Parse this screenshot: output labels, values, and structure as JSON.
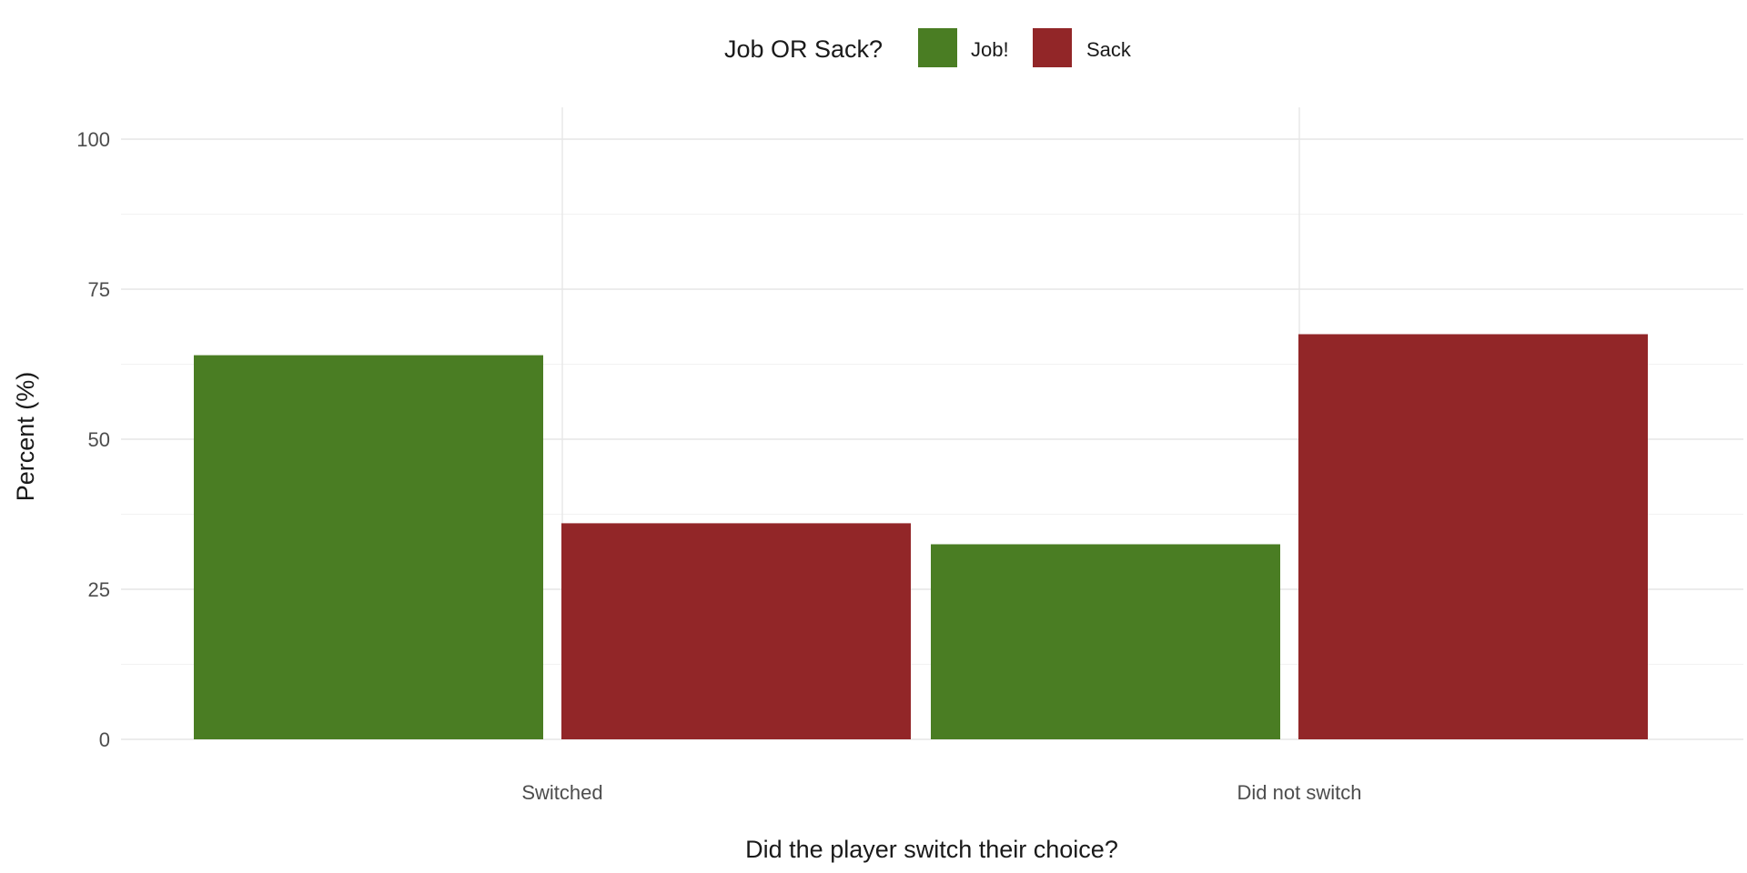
{
  "chart_data": {
    "type": "bar",
    "categories": [
      "Switched",
      "Did not switch"
    ],
    "series": [
      {
        "name": "Job!",
        "values": [
          64,
          32.5
        ],
        "color": "#4a7d23"
      },
      {
        "name": "Sack",
        "values": [
          36,
          67.5
        ],
        "color": "#922628"
      }
    ],
    "legend_title": "Job OR Sack?",
    "legend_position": "top",
    "xlabel": "Did the player switch their choice?",
    "ylabel": "Percent (%)",
    "ylim": [
      0,
      100
    ],
    "yticks": [
      "0",
      "25",
      "50",
      "75",
      "100"
    ],
    "grid": true
  }
}
